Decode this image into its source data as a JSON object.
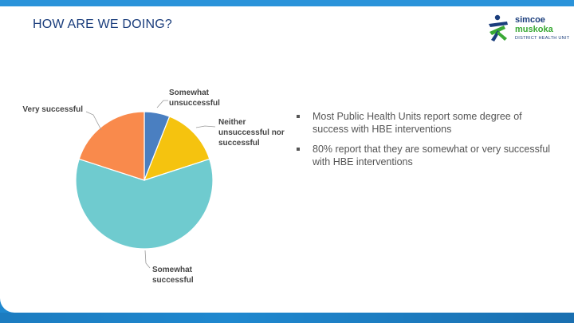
{
  "title": "HOW ARE WE DOING?",
  "logo": {
    "line1": "simcoe",
    "line2": "muskoka",
    "line3": "DISTRICT HEALTH UNIT"
  },
  "chart_data": {
    "type": "pie",
    "slices": [
      {
        "label": "Somewhat unsuccessful",
        "lines": [
          "Somewhat",
          "unsuccessful"
        ],
        "value": 6,
        "color": "#4a7fc1"
      },
      {
        "label": "Neither unsuccessful nor successful",
        "lines": [
          "Neither",
          "unsuccessful nor",
          "successful"
        ],
        "value": 14,
        "color": "#f5c30f"
      },
      {
        "label": "Somewhat successful",
        "lines": [
          "Somewhat",
          "successful"
        ],
        "value": 60,
        "color": "#6fcbcf"
      },
      {
        "label": "Very successful",
        "lines": [
          "Very successful"
        ],
        "value": 20,
        "color": "#f98a4c"
      }
    ]
  },
  "bullets": [
    "Most Public Health Units report some degree of success with HBE interventions",
    "80% report that they are somewhat or very successful with HBE interventions"
  ],
  "colors": {
    "frame": "#1f88cf",
    "title": "#1a3d7c",
    "logo_green": "#39a935"
  }
}
